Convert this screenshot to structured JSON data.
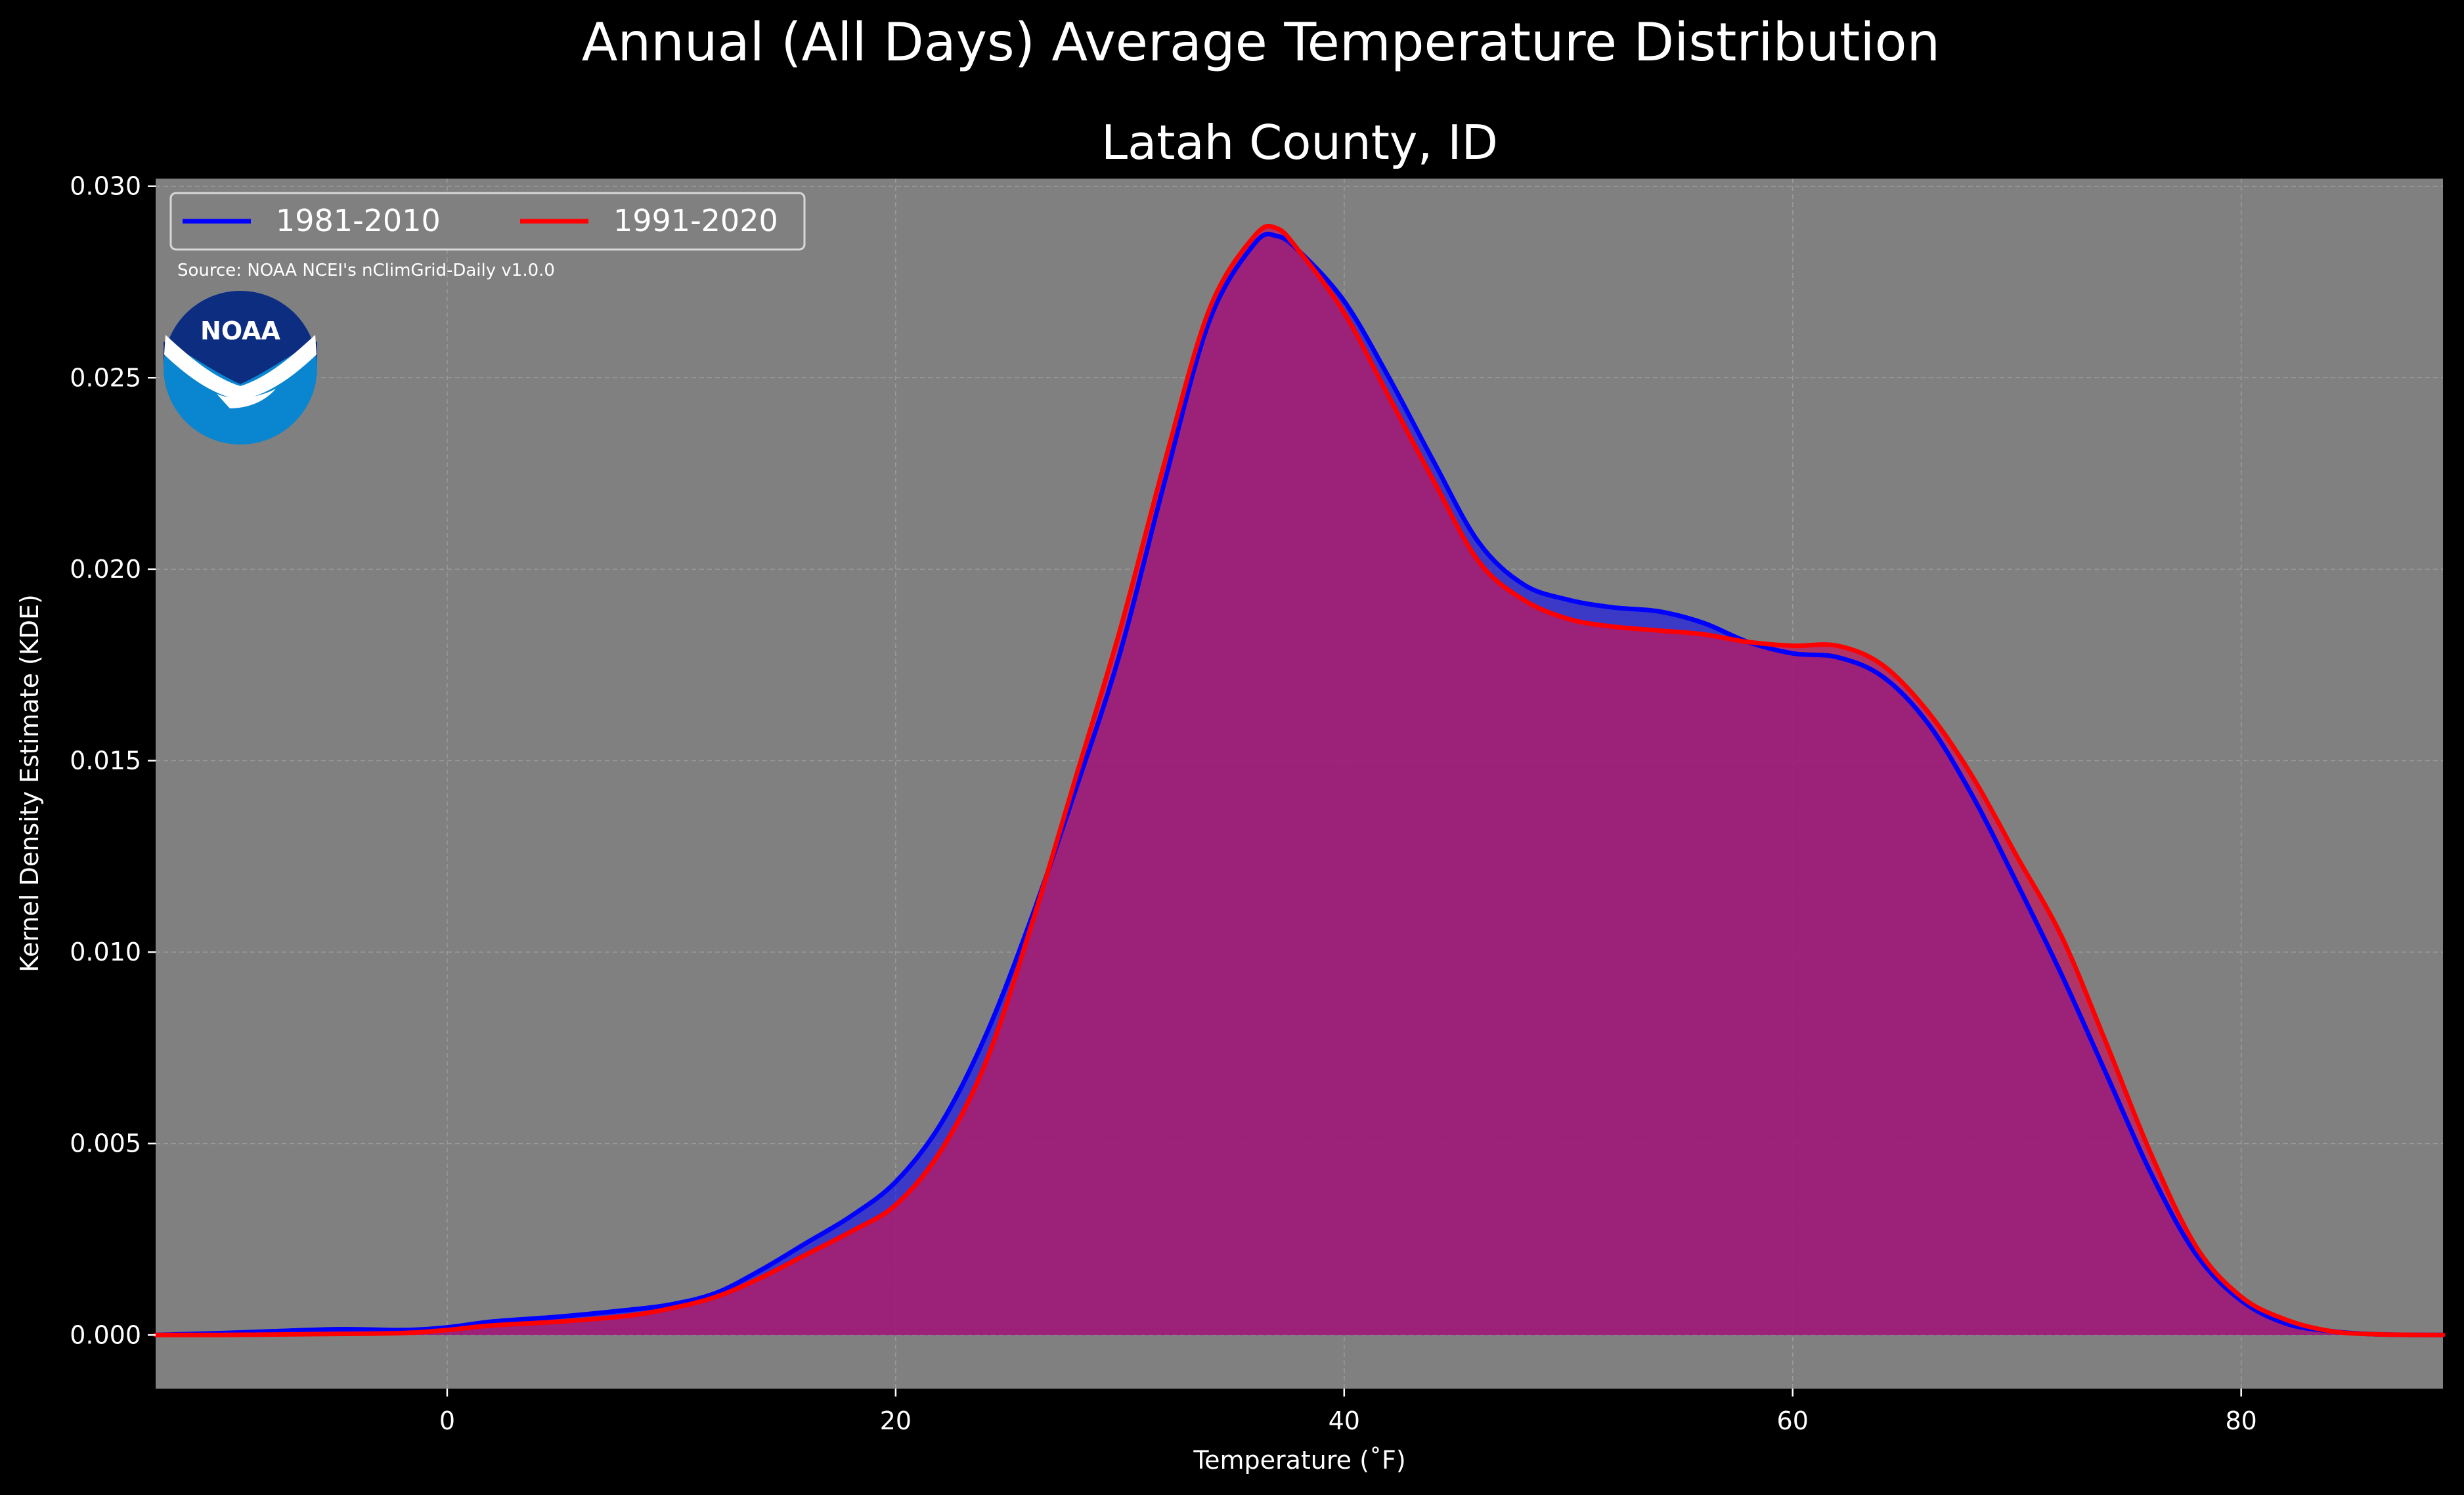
{
  "chart_data": {
    "type": "area",
    "title": "Annual (All Days) Average Temperature Distribution",
    "subtitle": "Latah County, ID",
    "xlabel": "Temperature (˚F)",
    "ylabel": "Kernel Density Estimate (KDE)",
    "xlim": [
      -13,
      89
    ],
    "ylim": [
      -0.0014,
      0.0302
    ],
    "x_ticks": [
      0,
      20,
      40,
      60,
      80
    ],
    "x_tick_labels": [
      "0",
      "20",
      "40",
      "60",
      "80"
    ],
    "y_ticks": [
      0.0,
      0.005,
      0.01,
      0.015,
      0.02,
      0.025,
      0.03
    ],
    "y_tick_labels": [
      "0.000",
      "0.005",
      "0.010",
      "0.015",
      "0.020",
      "0.025",
      "0.030"
    ],
    "grid": true,
    "legend_position": "upper-left",
    "source_note": "Source: NOAA NCEI's nClimGrid-Daily v1.0.0",
    "logo_text": "NOAA",
    "plot_background": "#808080",
    "figure_background": "#000000",
    "series": [
      {
        "name": "1981-2010",
        "color": "#0000ff",
        "fill_color": "#0000ff",
        "points": [
          [
            -13,
            0.0
          ],
          [
            -10,
            5e-05
          ],
          [
            -5,
            0.00015
          ],
          [
            -2,
            0.00013
          ],
          [
            0,
            0.0002
          ],
          [
            2,
            0.00035
          ],
          [
            5,
            0.00048
          ],
          [
            8,
            0.00065
          ],
          [
            10,
            0.0008
          ],
          [
            12,
            0.0011
          ],
          [
            14,
            0.0017
          ],
          [
            16,
            0.0024
          ],
          [
            18,
            0.0031
          ],
          [
            20,
            0.004
          ],
          [
            22,
            0.0055
          ],
          [
            24,
            0.0078
          ],
          [
            26,
            0.0108
          ],
          [
            28,
            0.0142
          ],
          [
            30,
            0.0178
          ],
          [
            32,
            0.0223
          ],
          [
            34,
            0.0265
          ],
          [
            36,
            0.0285
          ],
          [
            37,
            0.0287
          ],
          [
            38,
            0.0283
          ],
          [
            40,
            0.027
          ],
          [
            42,
            0.025
          ],
          [
            44,
            0.0228
          ],
          [
            46,
            0.0207
          ],
          [
            48,
            0.0196
          ],
          [
            50,
            0.0192
          ],
          [
            52,
            0.019
          ],
          [
            54,
            0.0189
          ],
          [
            56,
            0.0186
          ],
          [
            58,
            0.0181
          ],
          [
            60,
            0.0178
          ],
          [
            62,
            0.0177
          ],
          [
            64,
            0.0172
          ],
          [
            66,
            0.016
          ],
          [
            68,
            0.0141
          ],
          [
            70,
            0.0118
          ],
          [
            72,
            0.0094
          ],
          [
            74,
            0.0068
          ],
          [
            76,
            0.0042
          ],
          [
            78,
            0.0021
          ],
          [
            80,
            0.0009
          ],
          [
            82,
            0.0003
          ],
          [
            84,
            0.0001
          ],
          [
            86,
            2e-05
          ],
          [
            89,
            0.0
          ]
        ]
      },
      {
        "name": "1991-2020",
        "color": "#ff0000",
        "fill_color": "#c2185b",
        "points": [
          [
            -13,
            0.0
          ],
          [
            -10,
            0.0
          ],
          [
            -5,
            3e-05
          ],
          [
            -2,
            5e-05
          ],
          [
            0,
            0.00013
          ],
          [
            2,
            0.00025
          ],
          [
            5,
            0.00035
          ],
          [
            8,
            0.0005
          ],
          [
            10,
            0.0007
          ],
          [
            12,
            0.001
          ],
          [
            14,
            0.0015
          ],
          [
            16,
            0.0021
          ],
          [
            18,
            0.0027
          ],
          [
            20,
            0.0034
          ],
          [
            22,
            0.0048
          ],
          [
            24,
            0.0071
          ],
          [
            26,
            0.0106
          ],
          [
            28,
            0.0145
          ],
          [
            30,
            0.0184
          ],
          [
            32,
            0.0228
          ],
          [
            34,
            0.0268
          ],
          [
            36,
            0.0287
          ],
          [
            37,
            0.0289
          ],
          [
            38,
            0.0283
          ],
          [
            40,
            0.0267
          ],
          [
            42,
            0.0245
          ],
          [
            44,
            0.0223
          ],
          [
            46,
            0.0202
          ],
          [
            48,
            0.0192
          ],
          [
            50,
            0.0187
          ],
          [
            52,
            0.0185
          ],
          [
            54,
            0.0184
          ],
          [
            56,
            0.0183
          ],
          [
            58,
            0.0181
          ],
          [
            60,
            0.018
          ],
          [
            62,
            0.018
          ],
          [
            64,
            0.0175
          ],
          [
            66,
            0.0163
          ],
          [
            68,
            0.0146
          ],
          [
            70,
            0.0125
          ],
          [
            72,
            0.0104
          ],
          [
            74,
            0.0076
          ],
          [
            76,
            0.0047
          ],
          [
            78,
            0.0023
          ],
          [
            80,
            0.001
          ],
          [
            82,
            0.0004
          ],
          [
            84,
            0.0001
          ],
          [
            86,
            2e-05
          ],
          [
            89,
            0.0
          ]
        ]
      }
    ]
  }
}
